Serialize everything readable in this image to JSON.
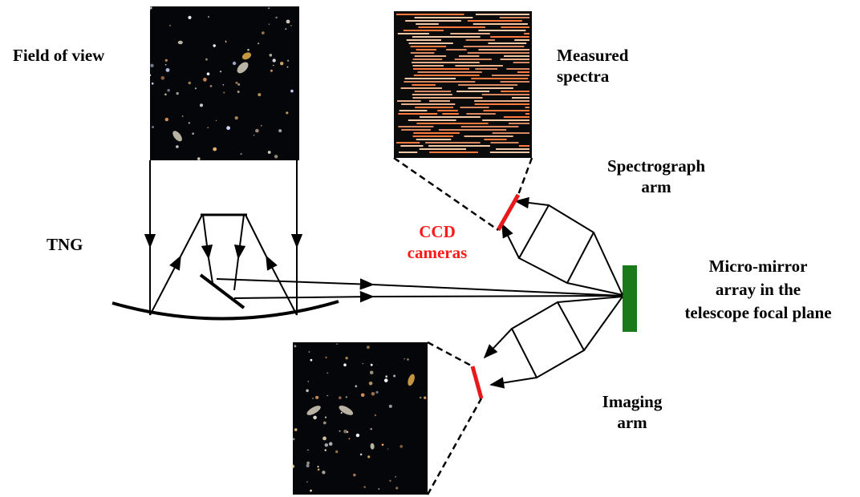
{
  "labels": {
    "field_of_view": "Field of view",
    "measured_spectra_l1": "Measured",
    "measured_spectra_l2": "spectra",
    "tng": "TNG",
    "ccd_cameras_l1": "CCD",
    "ccd_cameras_l2": "cameras",
    "spectrograph_arm_l1": "Spectrograph",
    "spectrograph_arm_l2": "arm",
    "micromirror_l1": "Micro-mirror",
    "micromirror_l2": "array in the",
    "micromirror_l3": "telescope focal plane",
    "imaging_arm_l1": "Imaging",
    "imaging_arm_l2": "arm"
  },
  "colors": {
    "ccd_label": "#ff1a1a",
    "ccd_detector": "#e8191b",
    "micromirror": "#1a7a1a",
    "sky_background": "#05060a",
    "spectra_background": "#0b0b0b",
    "spectra_line_a": "#e8b08a",
    "spectra_line_b": "#ff7a3c"
  }
}
